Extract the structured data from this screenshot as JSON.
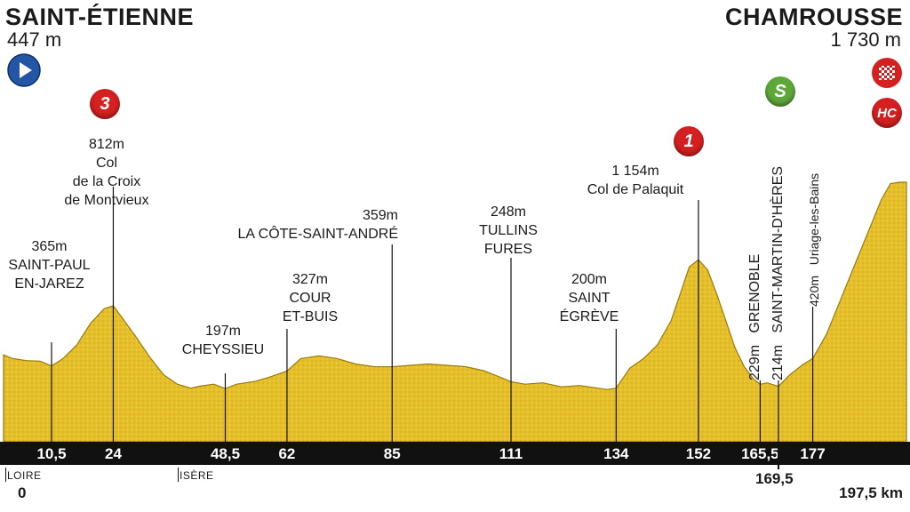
{
  "start": {
    "name": "SAINT-ÉTIENNE",
    "altitude": "447 m"
  },
  "finish": {
    "name": "CHAMROUSSE",
    "altitude": "1 730 m"
  },
  "icons": {
    "start": "start-play-icon",
    "finish": "finish-flag-icon"
  },
  "colors": {
    "profile": "#e6c02a",
    "profile_dark": "#b08c10",
    "axis": "#111111",
    "cat3": "#d42020",
    "cat1": "#d42020",
    "hc": "#d42020",
    "sprint": "#5ea83a",
    "start_icon": "#2456a6"
  },
  "waypoints": [
    {
      "alt": "365m",
      "name1": "SAINT-PAUL",
      "name2": "EN-JAREZ",
      "name3": ""
    },
    {
      "alt": "812m",
      "name1": "Col",
      "name2": "de la Croix",
      "name3": "de Montvieux"
    },
    {
      "alt": "197m",
      "name1": "CHEYSSIEU",
      "name2": "",
      "name3": ""
    },
    {
      "alt": "327m",
      "name1": "COUR",
      "name2": "ET-BUIS",
      "name3": ""
    },
    {
      "alt": "359m",
      "name1": "LA CÔTE-SAINT-ANDRÉ",
      "name2": "",
      "name3": ""
    },
    {
      "alt": "248m",
      "name1": "TULLINS",
      "name2": "FURES",
      "name3": ""
    },
    {
      "alt": "200m",
      "name1": "SAINT",
      "name2": "ÉGRÈVE",
      "name3": ""
    },
    {
      "alt": "1 154m",
      "name1": "Col de Palaquit",
      "name2": "",
      "name3": ""
    },
    {
      "alt": "229m",
      "name1": "GRENOBLE"
    },
    {
      "alt": "214m",
      "name1": "SAINT-MARTIN-D'HÈRES"
    },
    {
      "alt": "420m",
      "name1": "Uriage-les-Bains"
    }
  ],
  "climbs": [
    {
      "category": "3"
    },
    {
      "category": "1"
    },
    {
      "category": "HC"
    }
  ],
  "sprint": {
    "label": "S"
  },
  "km_marks": [
    "10,5",
    "24",
    "48,5",
    "62",
    "85",
    "111",
    "134",
    "152",
    "165,5",
    "177"
  ],
  "km_below": {
    "start": "0",
    "mid": "169,5",
    "total": "197,5 km"
  },
  "regions": {
    "loire": "LOIRE",
    "isere": "ISÈRE"
  },
  "profile_km": [
    0,
    2,
    5,
    8,
    10.5,
    13,
    16,
    19,
    22,
    24,
    26,
    29,
    32,
    35,
    38,
    41,
    43,
    46,
    48.5,
    51,
    55,
    58,
    62,
    65,
    69,
    73,
    77,
    81,
    85,
    89,
    93,
    97,
    101,
    105,
    108,
    111,
    114,
    118,
    122,
    126,
    130,
    132,
    134,
    137,
    140,
    143,
    146,
    148,
    150,
    152,
    154,
    156,
    158,
    160,
    162,
    164,
    165.5,
    167,
    169.5,
    172,
    175,
    177,
    180,
    183,
    186,
    189,
    192,
    194,
    196,
    197.5
  ],
  "profile_alt": [
    447,
    420,
    405,
    400,
    365,
    420,
    520,
    680,
    790,
    812,
    720,
    580,
    430,
    300,
    230,
    200,
    215,
    230,
    197,
    230,
    250,
    280,
    327,
    420,
    440,
    420,
    380,
    360,
    359,
    370,
    380,
    370,
    360,
    330,
    290,
    248,
    230,
    240,
    210,
    220,
    200,
    190,
    200,
    350,
    420,
    520,
    700,
    900,
    1100,
    1154,
    1080,
    900,
    700,
    500,
    360,
    270,
    229,
    240,
    214,
    300,
    380,
    420,
    600,
    850,
    1100,
    1350,
    1600,
    1720,
    1730,
    1730
  ]
}
